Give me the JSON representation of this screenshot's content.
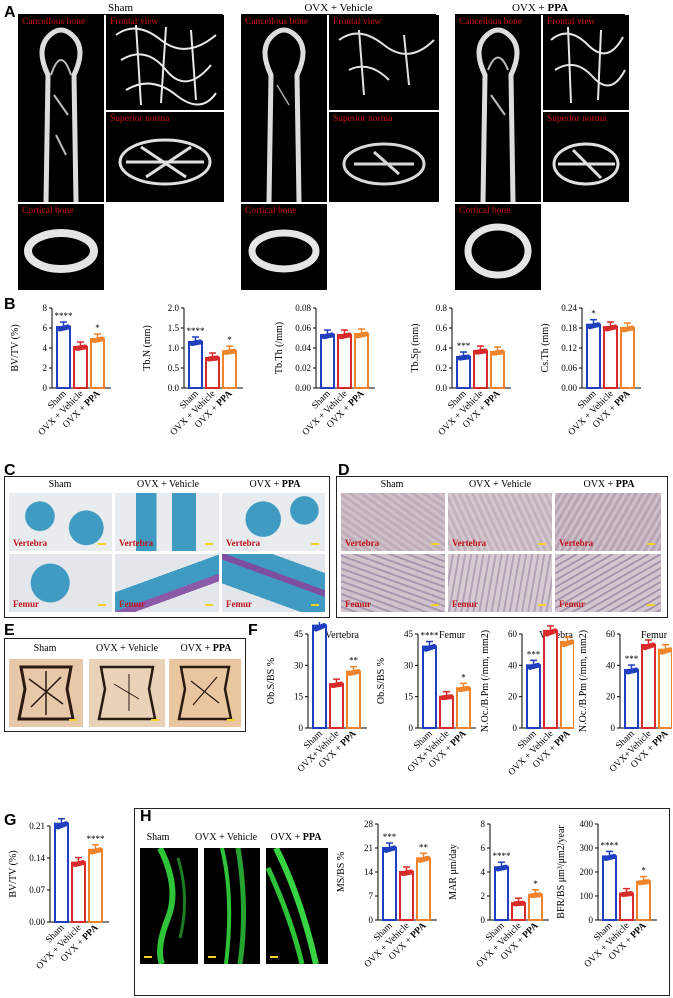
{
  "panels": {
    "a": "A",
    "b": "B",
    "c": "C",
    "d": "D",
    "e": "E",
    "f": "F",
    "g": "G",
    "h": "H"
  },
  "groups": {
    "sham": "Sham",
    "vehicle": "OVX + Vehicle",
    "ppa_prefix": "OVX + ",
    "ppa_bold": "PPA"
  },
  "ct_labels": {
    "cancellous": "Cancellous bone",
    "frontal": "Frontal view",
    "superior": "Superior norma",
    "cortical": "Cortical bone"
  },
  "histo_labels": {
    "vertebra": "Vertebra",
    "femur": "Femur"
  },
  "colors": {
    "sham": "#1f3fbf",
    "vehicle": "#d92b2b",
    "ppa": "#f0842c"
  },
  "chart_data": [
    {
      "id": "bvtv_b",
      "type": "bar",
      "ylabel": "BV/TV (%)",
      "ylim": [
        0,
        8
      ],
      "yticks": [
        "0",
        "2",
        "4",
        "6",
        "8"
      ],
      "categories": [
        "Sham",
        "OVX + Vehicle",
        "OVX + PPA"
      ],
      "values": [
        6.1,
        4.1,
        4.9
      ],
      "sig": [
        "****",
        "",
        "*"
      ]
    },
    {
      "id": "tbn",
      "type": "bar",
      "ylabel": "Tb.N (mm)",
      "ylim": [
        0,
        2.0
      ],
      "yticks": [
        "0.0",
        "0.5",
        "1.0",
        "1.5",
        "2.0"
      ],
      "categories": [
        "Sham",
        "OVX + Vehicle",
        "OVX + PPA"
      ],
      "values": [
        1.15,
        0.75,
        0.92
      ],
      "sig": [
        "****",
        "",
        "*"
      ]
    },
    {
      "id": "tbth",
      "type": "bar",
      "ylabel": "Tb.Th (/mm)",
      "ylim": [
        0,
        0.08
      ],
      "yticks": [
        "0.00",
        "0.02",
        "0.04",
        "0.06",
        "0.08"
      ],
      "categories": [
        "Sham",
        "OVX + Vehicle",
        "OVX + PPA"
      ],
      "values": [
        0.053,
        0.053,
        0.054
      ],
      "sig": [
        "",
        "",
        ""
      ]
    },
    {
      "id": "tbsp",
      "type": "bar",
      "ylabel": "Tb.Sp (mm)",
      "ylim": [
        0,
        0.8
      ],
      "yticks": [
        "0.0",
        "0.2",
        "0.4",
        "0.6",
        "0.8"
      ],
      "categories": [
        "Sham",
        "OVX + Vehicle",
        "OVX + PPA"
      ],
      "values": [
        0.31,
        0.37,
        0.36
      ],
      "sig": [
        "***",
        "",
        ""
      ]
    },
    {
      "id": "csth",
      "type": "bar",
      "ylabel": "Cs.Th (mm)",
      "ylim": [
        0,
        0.24
      ],
      "yticks": [
        "0.00",
        "0.06",
        "0.12",
        "0.18",
        "0.24"
      ],
      "categories": [
        "Sham",
        "OVX + Vehicle",
        "OVX + PPA"
      ],
      "values": [
        0.19,
        0.183,
        0.18
      ],
      "sig": [
        "*",
        "",
        ""
      ]
    },
    {
      "id": "obs_v",
      "type": "bar",
      "ylabel": "Ob.S/BS %",
      "title": "Vertebra",
      "ylim": [
        0,
        45
      ],
      "yticks": [
        "0",
        "15",
        "30",
        "45"
      ],
      "categories": [
        "Sham",
        "OVX+Vehicle",
        "OVX + PPA"
      ],
      "values": [
        49,
        21,
        27
      ],
      "sig": [
        "****",
        "",
        "**"
      ]
    },
    {
      "id": "obs_f",
      "type": "bar",
      "ylabel": "Ob.S/BS %",
      "title": "Femur",
      "ylim": [
        0,
        45
      ],
      "yticks": [
        "0",
        "15",
        "30",
        "45"
      ],
      "categories": [
        "Sham",
        "OVX+Vehicle",
        "OVX + PPA"
      ],
      "values": [
        39,
        15,
        19
      ],
      "sig": [
        "****",
        "",
        "*"
      ]
    },
    {
      "id": "noc_v",
      "type": "bar",
      "ylabel": "N.Oc./B.Pm (/mm, mm2)",
      "title": "Vertebra",
      "ylim": [
        0,
        60
      ],
      "yticks": [
        "0",
        "20",
        "40",
        "60"
      ],
      "categories": [
        "Sham",
        "OVX + Vehicle",
        "OVX + PPA"
      ],
      "values": [
        40,
        62,
        55
      ],
      "sig": [
        "***",
        "",
        ""
      ]
    },
    {
      "id": "noc_f",
      "type": "bar",
      "ylabel": "N.Oc./B.Pm (/mm, mm2)",
      "title": "Femur",
      "ylim": [
        0,
        60
      ],
      "yticks": [
        "0",
        "20",
        "40",
        "60"
      ],
      "categories": [
        "Sham",
        "OVX+Vehicle",
        "OVX + PPA"
      ],
      "values": [
        37,
        53,
        50
      ],
      "sig": [
        "***",
        "",
        ""
      ]
    },
    {
      "id": "bvtv_g",
      "type": "bar",
      "ylabel": "BV/TV (%)",
      "ylim": [
        0,
        0.21
      ],
      "yticks": [
        "0.00",
        "0.07",
        "0.14",
        "0.21"
      ],
      "categories": [
        "Sham",
        "OVX + Vehicle",
        "OVX + PPA"
      ],
      "values": [
        0.215,
        0.13,
        0.158
      ],
      "sig": [
        "****",
        "",
        "****"
      ]
    },
    {
      "id": "msbs",
      "type": "bar",
      "ylabel": "MS/BS %",
      "ylim": [
        0,
        28
      ],
      "yticks": [
        "0",
        "7",
        "14",
        "21",
        "28"
      ],
      "categories": [
        "Sham",
        "OVX + Vehicle",
        "OVX + PPA"
      ],
      "values": [
        21,
        14,
        18
      ],
      "sig": [
        "***",
        "",
        "**"
      ]
    },
    {
      "id": "mar",
      "type": "bar",
      "ylabel": "MAR μm/day",
      "ylim": [
        0,
        8
      ],
      "yticks": [
        "0",
        "2",
        "4",
        "6",
        "8"
      ],
      "categories": [
        "Sham",
        "OVX + Vehicle",
        "OVX + PPA"
      ],
      "values": [
        4.4,
        1.4,
        2.1
      ],
      "sig": [
        "****",
        "",
        "*"
      ]
    },
    {
      "id": "bfr",
      "type": "bar",
      "ylabel": "BFR/BS μm³/μm2/year",
      "ylim": [
        0,
        400
      ],
      "yticks": [
        "0",
        "100",
        "200",
        "300",
        "400"
      ],
      "categories": [
        "Sham",
        "OVX + Vehicle",
        "OVX + PPA"
      ],
      "values": [
        265,
        110,
        160
      ],
      "sig": [
        "****",
        "",
        "*"
      ]
    }
  ]
}
